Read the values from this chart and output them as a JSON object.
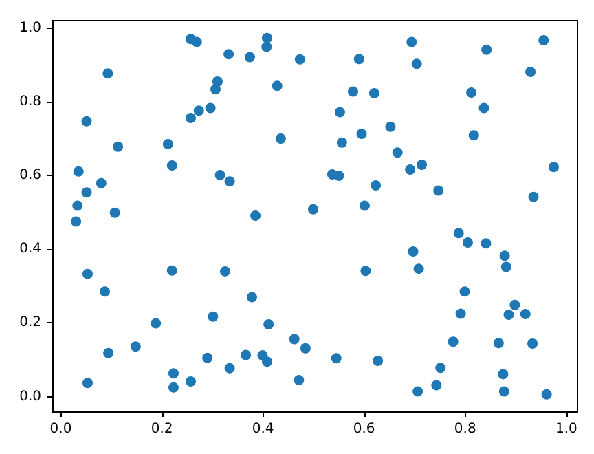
{
  "chart_data": {
    "type": "scatter",
    "marker": "circle",
    "grid": false,
    "xlim": [
      -0.017,
      1.022
    ],
    "ylim": [
      -0.04,
      1.02
    ],
    "xticks": [
      {
        "value": 0,
        "label": "0.0"
      },
      {
        "value": 0.2,
        "label": "0.2"
      },
      {
        "value": 0.4,
        "label": "0.4"
      },
      {
        "value": 0.6,
        "label": "0.6"
      },
      {
        "value": 0.8,
        "label": "0.8"
      },
      {
        "value": 1,
        "label": "1.0"
      }
    ],
    "yticks": [
      {
        "value": 0,
        "label": "0.0"
      },
      {
        "value": 0.2,
        "label": "0.2"
      },
      {
        "value": 0.4,
        "label": "0.4"
      },
      {
        "value": 0.6,
        "label": "0.6"
      },
      {
        "value": 0.8,
        "label": "0.8"
      },
      {
        "value": 1,
        "label": "1.0"
      }
    ],
    "series": [
      {
        "color": "#1f77b4",
        "x": [
          0.257,
          0.269,
          0.093,
          0.332,
          0.374,
          0.408,
          0.407,
          0.473,
          0.31,
          0.306,
          0.428,
          0.051,
          0.273,
          0.257,
          0.296,
          0.113,
          0.212,
          0.435,
          0.22,
          0.035,
          0.08,
          0.051,
          0.315,
          0.334,
          0.033,
          0.107,
          0.385,
          0.499,
          0.03,
          0.053,
          0.22,
          0.325,
          0.087,
          0.378,
          0.301,
          0.188,
          0.411,
          0.148,
          0.094,
          0.29,
          0.366,
          0.399,
          0.408,
          0.462,
          0.484,
          0.334,
          0.223,
          0.257,
          0.223,
          0.053,
          0.471,
          0.694,
          0.842,
          0.955,
          0.59,
          0.704,
          0.929,
          0.578,
          0.62,
          0.812,
          0.837,
          0.552,
          0.652,
          0.595,
          0.817,
          0.556,
          0.666,
          0.714,
          0.691,
          0.975,
          0.537,
          0.55,
          0.623,
          0.747,
          0.935,
          0.601,
          0.787,
          0.805,
          0.841,
          0.878,
          0.881,
          0.697,
          0.708,
          0.603,
          0.799,
          0.898,
          0.791,
          0.886,
          0.919,
          0.545,
          0.627,
          0.776,
          0.866,
          0.933,
          0.751,
          0.875,
          0.743,
          0.706,
          0.877,
          0.961
        ],
        "values": [
          0.97,
          0.962,
          0.877,
          0.929,
          0.921,
          0.973,
          0.949,
          0.915,
          0.855,
          0.834,
          0.843,
          0.747,
          0.776,
          0.756,
          0.783,
          0.678,
          0.685,
          0.7,
          0.627,
          0.611,
          0.579,
          0.554,
          0.601,
          0.584,
          0.518,
          0.499,
          0.491,
          0.508,
          0.475,
          0.333,
          0.342,
          0.34,
          0.285,
          0.27,
          0.217,
          0.199,
          0.196,
          0.136,
          0.118,
          0.105,
          0.113,
          0.112,
          0.095,
          0.156,
          0.131,
          0.077,
          0.063,
          0.041,
          0.025,
          0.037,
          0.045,
          0.962,
          0.941,
          0.967,
          0.916,
          0.903,
          0.881,
          0.828,
          0.823,
          0.825,
          0.783,
          0.772,
          0.732,
          0.713,
          0.709,
          0.689,
          0.662,
          0.629,
          0.616,
          0.623,
          0.603,
          0.599,
          0.573,
          0.559,
          0.542,
          0.518,
          0.444,
          0.418,
          0.416,
          0.382,
          0.352,
          0.394,
          0.347,
          0.341,
          0.285,
          0.249,
          0.225,
          0.222,
          0.224,
          0.104,
          0.097,
          0.149,
          0.145,
          0.144,
          0.078,
          0.061,
          0.031,
          0.014,
          0.014,
          0.006
        ]
      }
    ]
  }
}
